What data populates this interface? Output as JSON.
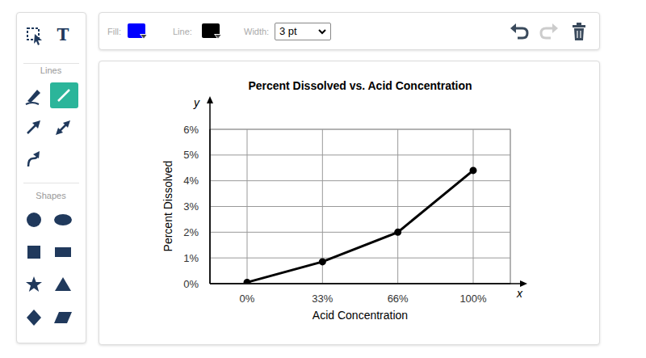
{
  "toolbar": {
    "fill_label": "Fill:",
    "fill_color": "#0000ff",
    "line_label": "Line:",
    "line_color": "#000000",
    "width_label": "Width:",
    "width_value": "3 pt"
  },
  "tools": {
    "text_tool": "T",
    "lines_heading": "Lines",
    "shapes_heading": "Shapes"
  },
  "chart_data": {
    "type": "line",
    "title": "Percent Dissolved vs. Acid Concentration",
    "x_label": "Acid Concentration",
    "y_label": "Percent Dissolved",
    "x_axis_symbol": "x",
    "y_axis_symbol": "y",
    "categories": [
      "0%",
      "33%",
      "66%",
      "100%"
    ],
    "values": [
      0.05,
      0.85,
      2.0,
      4.4
    ],
    "color": "#000000",
    "marker": "circle",
    "ylim": [
      0,
      6
    ],
    "yticks": [
      {
        "value": 0,
        "label": "0%"
      },
      {
        "value": 1,
        "label": "1%"
      },
      {
        "value": 2,
        "label": "2%"
      },
      {
        "value": 3,
        "label": "3%"
      },
      {
        "value": 4,
        "label": "4%"
      },
      {
        "value": 5,
        "label": "5%"
      },
      {
        "value": 6,
        "label": "6%"
      }
    ],
    "grid": true
  }
}
